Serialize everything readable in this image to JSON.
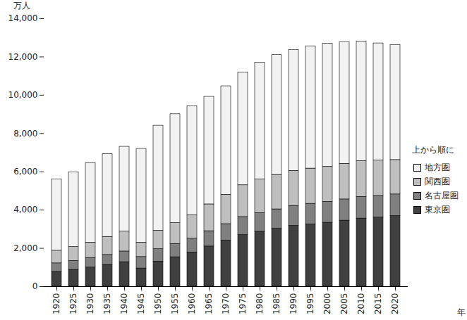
{
  "chart_data": {
    "type": "bar",
    "stacked": true,
    "y_label": "万人",
    "x_label": "年",
    "legend_title": "上から順に",
    "legend": "right",
    "categories": [
      "1920",
      "1925",
      "1930",
      "1935",
      "1940",
      "1945",
      "1950",
      "1955",
      "1960",
      "1965",
      "1970",
      "1975",
      "1980",
      "1985",
      "1990",
      "1995",
      "2000",
      "2005",
      "2010",
      "2015",
      "2020"
    ],
    "series": [
      {
        "name": "東京圏",
        "color": "#404040",
        "values": [
          770,
          880,
          1000,
          1140,
          1280,
          950,
          1310,
          1540,
          1790,
          2100,
          2410,
          2700,
          2870,
          3030,
          3180,
          3260,
          3340,
          3450,
          3560,
          3610,
          3690
        ]
      },
      {
        "name": "名古屋圏",
        "color": "#808080",
        "values": [
          450,
          460,
          500,
          520,
          560,
          600,
          650,
          690,
          730,
          800,
          860,
          940,
          980,
          1010,
          1040,
          1070,
          1090,
          1110,
          1130,
          1130,
          1130
        ]
      },
      {
        "name": "関西圏",
        "color": "#bfbfbf",
        "values": [
          660,
          730,
          800,
          940,
          1040,
          750,
          960,
          1090,
          1210,
          1400,
          1530,
          1660,
          1750,
          1800,
          1830,
          1840,
          1830,
          1860,
          1870,
          1850,
          1800
        ]
      },
      {
        "name": "地方圏",
        "color": "#f2f2f2",
        "values": [
          3720,
          3910,
          4150,
          4330,
          4430,
          4900,
          5490,
          5690,
          5700,
          5620,
          5670,
          5890,
          6110,
          6260,
          6310,
          6390,
          6430,
          6360,
          6250,
          6120,
          5995
        ]
      }
    ],
    "ylim": [
      0,
      14000
    ],
    "yticks": [
      0,
      {
        "value": 2000,
        "label": "2,000"
      },
      {
        "value": 4000,
        "label": "4,000"
      },
      {
        "value": 6000,
        "label": "6,000"
      },
      {
        "value": 8000,
        "label": "8,000"
      },
      {
        "value": 10000,
        "label": "10,000"
      },
      {
        "value": 12000,
        "label": "12,000"
      },
      {
        "value": 14000,
        "label": "14,000"
      }
    ],
    "grid": false
  }
}
